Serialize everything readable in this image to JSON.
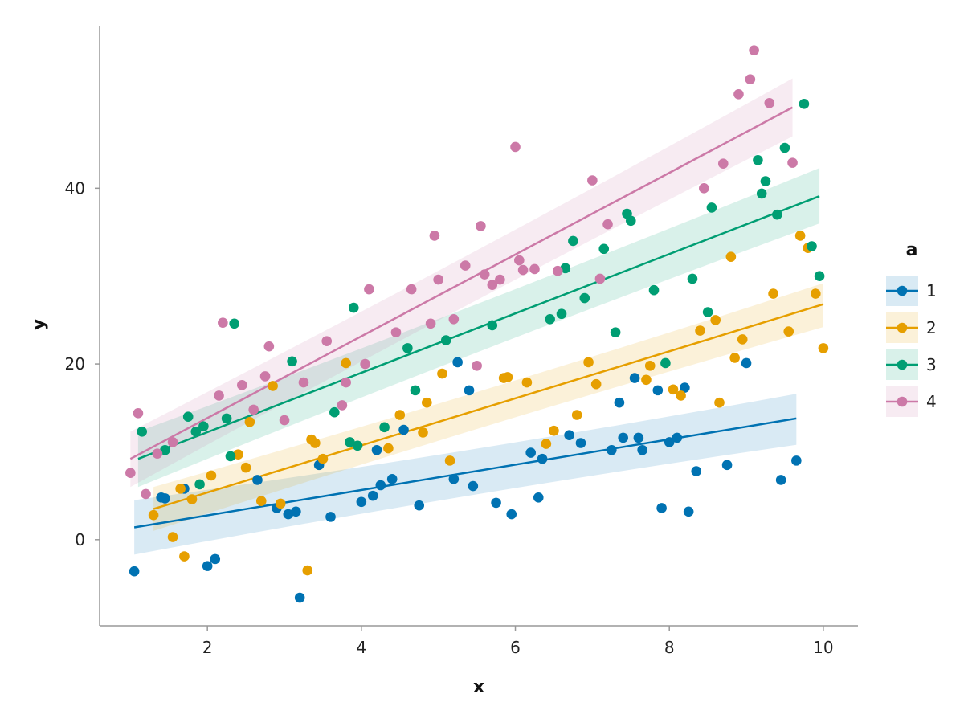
{
  "chart_data": {
    "type": "scatter",
    "title": "",
    "xlabel": "x",
    "ylabel": "y",
    "xlim": [
      0.6,
      10.45
    ],
    "ylim": [
      -9.8,
      58.5
    ],
    "xticks": [
      2,
      4,
      6,
      8,
      10
    ],
    "yticks": [
      0,
      20,
      40
    ],
    "grid": false,
    "legend": {
      "title": "a",
      "position": "right"
    },
    "series": [
      {
        "name": "1",
        "color": "#0072B2",
        "points": [
          [
            1.05,
            -3.6
          ],
          [
            1.4,
            4.8
          ],
          [
            1.45,
            4.7
          ],
          [
            1.7,
            5.8
          ],
          [
            2.0,
            -3.0
          ],
          [
            2.1,
            -2.2
          ],
          [
            2.65,
            6.8
          ],
          [
            2.9,
            3.6
          ],
          [
            3.05,
            2.9
          ],
          [
            3.15,
            3.2
          ],
          [
            3.2,
            -6.6
          ],
          [
            3.45,
            8.5
          ],
          [
            3.6,
            2.6
          ],
          [
            4.0,
            4.3
          ],
          [
            4.15,
            5.0
          ],
          [
            4.2,
            10.2
          ],
          [
            4.25,
            6.2
          ],
          [
            4.4,
            6.9
          ],
          [
            4.55,
            12.5
          ],
          [
            4.75,
            3.9
          ],
          [
            5.2,
            6.9
          ],
          [
            5.25,
            20.2
          ],
          [
            5.4,
            17.0
          ],
          [
            5.45,
            6.1
          ],
          [
            5.75,
            4.2
          ],
          [
            5.95,
            2.9
          ],
          [
            6.2,
            9.9
          ],
          [
            6.3,
            4.8
          ],
          [
            6.35,
            9.2
          ],
          [
            6.7,
            11.9
          ],
          [
            6.85,
            11.0
          ],
          [
            7.25,
            10.2
          ],
          [
            7.35,
            15.6
          ],
          [
            7.4,
            11.6
          ],
          [
            7.55,
            18.4
          ],
          [
            7.6,
            11.6
          ],
          [
            7.65,
            10.2
          ],
          [
            7.85,
            17.0
          ],
          [
            7.9,
            3.6
          ],
          [
            8.0,
            11.1
          ],
          [
            8.1,
            11.6
          ],
          [
            8.2,
            17.3
          ],
          [
            8.25,
            3.2
          ],
          [
            8.35,
            7.8
          ],
          [
            8.75,
            8.5
          ],
          [
            9.0,
            20.1
          ],
          [
            9.45,
            6.8
          ],
          [
            9.65,
            9.0
          ]
        ],
        "fit": {
          "x": [
            1.05,
            9.65
          ],
          "y": [
            1.4,
            13.8
          ],
          "ci_low": [
            -1.7,
            10.8
          ],
          "ci_high": [
            4.5,
            16.6
          ]
        }
      },
      {
        "name": "2",
        "color": "#E69F00",
        "points": [
          [
            1.3,
            2.8
          ],
          [
            1.55,
            0.3
          ],
          [
            1.65,
            5.8
          ],
          [
            1.7,
            -1.9
          ],
          [
            1.8,
            4.6
          ],
          [
            2.05,
            7.3
          ],
          [
            2.4,
            9.7
          ],
          [
            2.5,
            8.2
          ],
          [
            2.55,
            13.4
          ],
          [
            2.7,
            4.4
          ],
          [
            2.85,
            17.5
          ],
          [
            2.95,
            4.1
          ],
          [
            3.3,
            -3.5
          ],
          [
            3.35,
            11.4
          ],
          [
            3.4,
            11.0
          ],
          [
            3.5,
            9.2
          ],
          [
            3.8,
            20.1
          ],
          [
            4.35,
            10.4
          ],
          [
            4.5,
            14.2
          ],
          [
            4.8,
            12.2
          ],
          [
            4.85,
            15.6
          ],
          [
            5.05,
            18.9
          ],
          [
            5.15,
            9.0
          ],
          [
            5.85,
            18.4
          ],
          [
            5.9,
            18.5
          ],
          [
            6.15,
            17.9
          ],
          [
            6.4,
            10.9
          ],
          [
            6.5,
            12.4
          ],
          [
            6.8,
            14.2
          ],
          [
            6.95,
            20.2
          ],
          [
            7.05,
            17.7
          ],
          [
            7.7,
            18.2
          ],
          [
            7.75,
            19.8
          ],
          [
            8.05,
            17.1
          ],
          [
            8.15,
            16.4
          ],
          [
            8.4,
            23.8
          ],
          [
            8.6,
            25.0
          ],
          [
            8.65,
            15.6
          ],
          [
            8.8,
            32.2
          ],
          [
            8.85,
            20.7
          ],
          [
            8.95,
            22.8
          ],
          [
            9.35,
            28.0
          ],
          [
            9.55,
            23.7
          ],
          [
            9.7,
            34.6
          ],
          [
            9.8,
            33.2
          ],
          [
            9.9,
            28.0
          ],
          [
            10.0,
            21.8
          ]
        ],
        "fit": {
          "x": [
            1.3,
            10.0
          ],
          "y": [
            3.5,
            26.8
          ],
          "ci_low": [
            1.0,
            24.2
          ],
          "ci_high": [
            6.0,
            29.2
          ]
        }
      },
      {
        "name": "3",
        "color": "#009E73",
        "points": [
          [
            1.15,
            12.3
          ],
          [
            1.45,
            10.2
          ],
          [
            1.75,
            14.0
          ],
          [
            1.85,
            12.3
          ],
          [
            1.9,
            6.3
          ],
          [
            1.95,
            12.9
          ],
          [
            2.25,
            13.8
          ],
          [
            2.3,
            9.5
          ],
          [
            2.35,
            24.6
          ],
          [
            3.1,
            20.3
          ],
          [
            3.65,
            14.5
          ],
          [
            3.85,
            11.1
          ],
          [
            3.9,
            26.4
          ],
          [
            3.95,
            10.7
          ],
          [
            4.3,
            12.8
          ],
          [
            4.6,
            21.8
          ],
          [
            4.7,
            17.0
          ],
          [
            5.1,
            22.7
          ],
          [
            5.7,
            24.4
          ],
          [
            6.45,
            25.1
          ],
          [
            6.6,
            25.7
          ],
          [
            6.65,
            30.9
          ],
          [
            6.75,
            34.0
          ],
          [
            6.9,
            27.5
          ],
          [
            7.15,
            33.1
          ],
          [
            7.3,
            23.6
          ],
          [
            7.45,
            37.1
          ],
          [
            7.5,
            36.3
          ],
          [
            7.8,
            28.4
          ],
          [
            7.95,
            20.1
          ],
          [
            8.3,
            29.7
          ],
          [
            8.5,
            25.9
          ],
          [
            8.55,
            37.8
          ],
          [
            9.15,
            43.2
          ],
          [
            9.2,
            39.4
          ],
          [
            9.25,
            40.8
          ],
          [
            9.4,
            37.0
          ],
          [
            9.5,
            44.6
          ],
          [
            9.75,
            49.6
          ],
          [
            9.85,
            33.4
          ],
          [
            9.95,
            30.0
          ]
        ],
        "fit": {
          "x": [
            1.1,
            9.95
          ],
          "y": [
            9.2,
            39.1
          ],
          "ci_low": [
            6.0,
            36.0
          ],
          "ci_high": [
            12.3,
            42.3
          ]
        }
      },
      {
        "name": "4",
        "color": "#CC79A7",
        "points": [
          [
            1.0,
            7.6
          ],
          [
            1.1,
            14.4
          ],
          [
            1.2,
            5.2
          ],
          [
            1.35,
            9.8
          ],
          [
            1.55,
            11.1
          ],
          [
            2.15,
            16.4
          ],
          [
            2.2,
            24.7
          ],
          [
            2.45,
            17.6
          ],
          [
            2.6,
            14.8
          ],
          [
            2.75,
            18.6
          ],
          [
            2.8,
            22.0
          ],
          [
            3.0,
            13.6
          ],
          [
            3.25,
            17.9
          ],
          [
            3.55,
            22.6
          ],
          [
            3.75,
            15.3
          ],
          [
            3.8,
            17.9
          ],
          [
            4.05,
            20.0
          ],
          [
            4.1,
            28.5
          ],
          [
            4.45,
            23.6
          ],
          [
            4.65,
            28.5
          ],
          [
            4.9,
            24.6
          ],
          [
            4.95,
            34.6
          ],
          [
            5.0,
            29.6
          ],
          [
            5.2,
            25.1
          ],
          [
            5.35,
            31.2
          ],
          [
            5.5,
            19.8
          ],
          [
            5.55,
            35.7
          ],
          [
            5.6,
            30.2
          ],
          [
            5.7,
            29.0
          ],
          [
            5.8,
            29.6
          ],
          [
            6.0,
            44.7
          ],
          [
            6.05,
            31.8
          ],
          [
            6.1,
            30.7
          ],
          [
            6.25,
            30.8
          ],
          [
            6.55,
            30.6
          ],
          [
            7.0,
            40.9
          ],
          [
            7.1,
            29.7
          ],
          [
            7.2,
            35.9
          ],
          [
            8.45,
            40.0
          ],
          [
            8.7,
            42.8
          ],
          [
            8.9,
            50.7
          ],
          [
            9.05,
            52.4
          ],
          [
            9.1,
            55.7
          ],
          [
            9.3,
            49.7
          ],
          [
            9.6,
            42.9
          ]
        ],
        "fit": {
          "x": [
            1.0,
            9.6
          ],
          "y": [
            9.2,
            49.2
          ],
          "ci_low": [
            6.0,
            45.9
          ],
          "ci_high": [
            12.3,
            52.5
          ]
        }
      }
    ]
  }
}
